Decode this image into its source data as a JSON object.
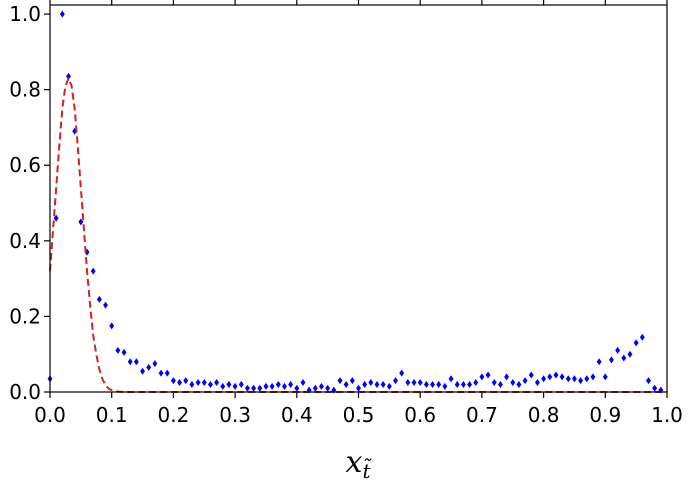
{
  "chart_data": {
    "type": "scatter",
    "x_label": {
      "base": "x",
      "subscript": "t̃"
    },
    "xlim": [
      0,
      1
    ],
    "ylim": [
      0,
      1.024
    ],
    "xticks": [
      {
        "value": 0,
        "label": "0.0"
      },
      {
        "value": 0.1,
        "label": "0.1"
      },
      {
        "value": 0.2,
        "label": "0.2"
      },
      {
        "value": 0.3,
        "label": "0.3"
      },
      {
        "value": 0.4,
        "label": "0.4"
      },
      {
        "value": 0.5,
        "label": "0.5"
      },
      {
        "value": 0.6,
        "label": "0.6"
      },
      {
        "value": 0.7,
        "label": "0.7"
      },
      {
        "value": 0.8,
        "label": "0.8"
      },
      {
        "value": 0.9,
        "label": "0.9"
      },
      {
        "value": 1,
        "label": "1.0"
      }
    ],
    "yticks": [
      {
        "value": 0,
        "label": "0.0"
      },
      {
        "value": 0.2,
        "label": "0.2"
      },
      {
        "value": 0.4,
        "label": "0.4"
      },
      {
        "value": 0.6,
        "label": "0.6"
      },
      {
        "value": 0.8,
        "label": "0.8"
      },
      {
        "value": 1,
        "label": "1.0"
      }
    ],
    "series": [
      {
        "type": "scatter",
        "color": "#0000ff",
        "marker": "diamond",
        "x": [
          0,
          0.01,
          0.02,
          0.03,
          0.04,
          0.05,
          0.06,
          0.07,
          0.08,
          0.09,
          0.1,
          0.11,
          0.12,
          0.13,
          0.14,
          0.15,
          0.16,
          0.17,
          0.18,
          0.19,
          0.2,
          0.21,
          0.22,
          0.23,
          0.24,
          0.25,
          0.26,
          0.27,
          0.28,
          0.29,
          0.3,
          0.31,
          0.32,
          0.33,
          0.34,
          0.35,
          0.36,
          0.37,
          0.38,
          0.39,
          0.4,
          0.41,
          0.42,
          0.43,
          0.44,
          0.45,
          0.46,
          0.47,
          0.48,
          0.49,
          0.5,
          0.51,
          0.52,
          0.53,
          0.54,
          0.55,
          0.56,
          0.57,
          0.58,
          0.59,
          0.6,
          0.61,
          0.62,
          0.63,
          0.64,
          0.65,
          0.66,
          0.67,
          0.68,
          0.69,
          0.7,
          0.71,
          0.72,
          0.73,
          0.74,
          0.75,
          0.76,
          0.77,
          0.78,
          0.79,
          0.8,
          0.81,
          0.82,
          0.83,
          0.84,
          0.85,
          0.86,
          0.87,
          0.88,
          0.89,
          0.9,
          0.91,
          0.92,
          0.93,
          0.94,
          0.95,
          0.96,
          0.97,
          0.98,
          0.99
        ],
        "values": [
          0.035,
          0.46,
          1.0,
          0.835,
          0.69,
          0.45,
          0.37,
          0.32,
          0.245,
          0.23,
          0.175,
          0.11,
          0.105,
          0.08,
          0.08,
          0.055,
          0.065,
          0.075,
          0.05,
          0.05,
          0.03,
          0.025,
          0.03,
          0.02,
          0.025,
          0.025,
          0.02,
          0.025,
          0.015,
          0.02,
          0.015,
          0.02,
          0.01,
          0.01,
          0.01,
          0.015,
          0.015,
          0.02,
          0.015,
          0.02,
          0.01,
          0.025,
          0.005,
          0.01,
          0.015,
          0.01,
          0.005,
          0.03,
          0.02,
          0.03,
          0.01,
          0.02,
          0.025,
          0.02,
          0.02,
          0.015,
          0.03,
          0.05,
          0.025,
          0.025,
          0.025,
          0.02,
          0.02,
          0.02,
          0.015,
          0.035,
          0.02,
          0.02,
          0.02,
          0.025,
          0.04,
          0.045,
          0.025,
          0.02,
          0.04,
          0.025,
          0.02,
          0.03,
          0.045,
          0.025,
          0.035,
          0.04,
          0.045,
          0.04,
          0.035,
          0.035,
          0.03,
          0.035,
          0.04,
          0.08,
          0.04,
          0.085,
          0.11,
          0.09,
          0.1,
          0.13,
          0.145,
          0.03,
          0.01,
          0.005
        ]
      },
      {
        "type": "line",
        "color": "#d62020",
        "linestyle": "dashed",
        "x": [
          0,
          0.005,
          0.01,
          0.015,
          0.02,
          0.025,
          0.03,
          0.035,
          0.04,
          0.045,
          0.05,
          0.055,
          0.06,
          0.065,
          0.07,
          0.075,
          0.08,
          0.085,
          0.09,
          0.095,
          0.1,
          0.11,
          0.12,
          1
        ],
        "values": [
          0.32,
          0.43,
          0.54,
          0.65,
          0.75,
          0.81,
          0.83,
          0.81,
          0.75,
          0.65,
          0.54,
          0.43,
          0.32,
          0.23,
          0.15,
          0.1,
          0.06,
          0.034,
          0.018,
          0.009,
          0.005,
          0.001,
          0,
          0
        ]
      }
    ]
  }
}
